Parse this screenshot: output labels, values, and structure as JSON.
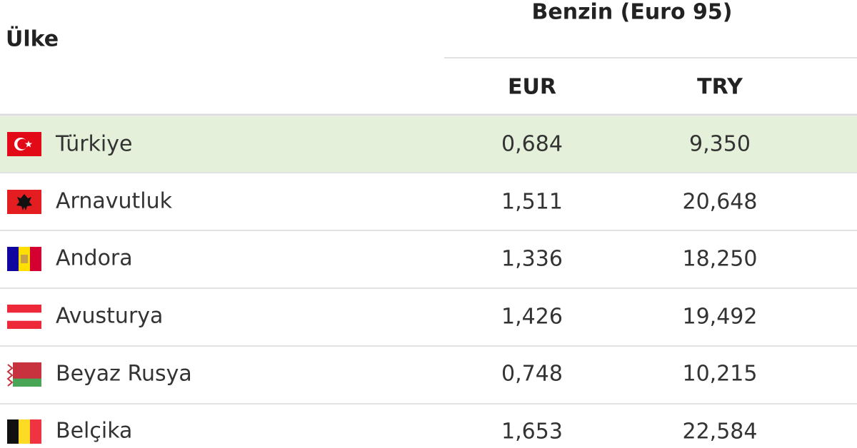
{
  "header": {
    "country": "Ülke",
    "group": "Benzin (Euro 95)",
    "columns": [
      "EUR",
      "TRY"
    ]
  },
  "table": {
    "rows": [
      [
        "Türkiye",
        "0,684",
        "9,350"
      ],
      [
        "Arnavutluk",
        "1,511",
        "20,648"
      ],
      [
        "Andora",
        "1,336",
        "18,250"
      ],
      [
        "Avusturya",
        "1,426",
        "19,492"
      ],
      [
        "Beyaz Rusya",
        "0,748",
        "10,215"
      ],
      [
        "Belçika",
        "1,653",
        "22,584"
      ]
    ]
  }
}
